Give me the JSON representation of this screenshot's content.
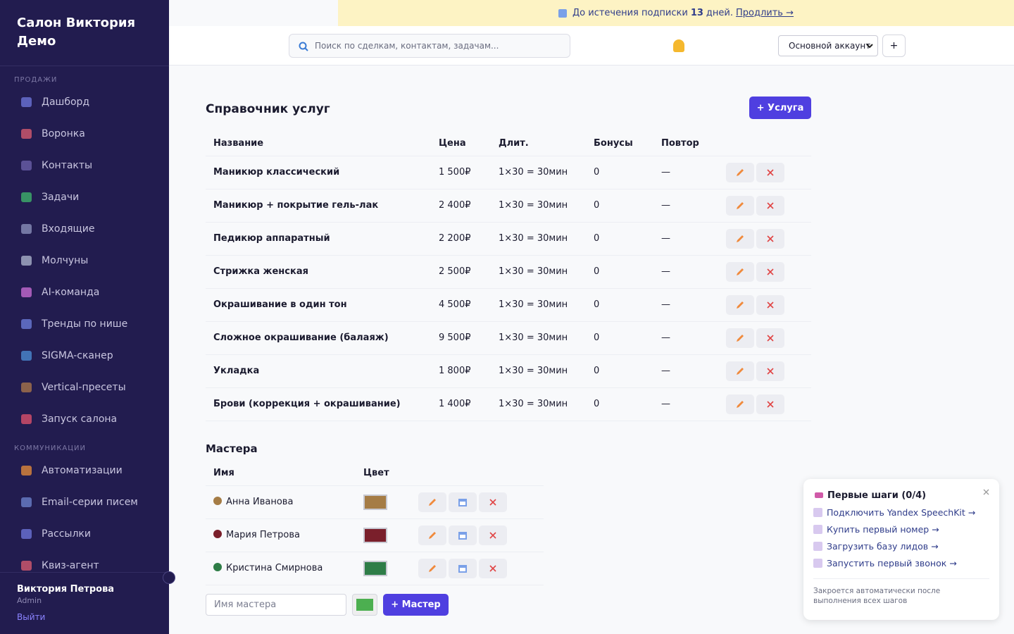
{
  "sidebar": {
    "brand": "Салон Виктория Демо",
    "sections": [
      {
        "label": "ПРОДАЖИ",
        "items": [
          "Дашборд",
          "Воронка",
          "Контакты",
          "Задачи",
          "Входящие",
          "Молчуны",
          "AI-команда",
          "Тренды по нише",
          "SIGMA-сканер",
          "Vertical-пресеты",
          "Запуск салона"
        ]
      },
      {
        "label": "КОММУНИКАЦИИ",
        "items": [
          "Автоматизации",
          "Email-серии писем",
          "Рассылки",
          "Квиз-агент"
        ]
      }
    ],
    "user": {
      "name": "Виктория Петрова",
      "role": "Admin",
      "logout": "Выйти"
    }
  },
  "banner": {
    "text_before": "До истечения подписки",
    "days": "13",
    "text_after": "дней.",
    "link": "Продлить →"
  },
  "topbar": {
    "search_placeholder": "Поиск по сделкам, контактам, задачам...",
    "account": "Основной аккаунт",
    "add": "+"
  },
  "services": {
    "title": "Справочник услуг",
    "add_button": "+ Услуга",
    "columns": [
      "Название",
      "Цена",
      "Длит.",
      "Бонусы",
      "Повтор"
    ],
    "rows": [
      [
        "Маникюр классический",
        "1 500₽",
        "1×30 = 30мин",
        "0",
        "—"
      ],
      [
        "Маникюр + покрытие гель-лак",
        "2 400₽",
        "1×30 = 30мин",
        "0",
        "—"
      ],
      [
        "Педикюр аппаратный",
        "2 200₽",
        "1×30 = 30мин",
        "0",
        "—"
      ],
      [
        "Стрижка женская",
        "2 500₽",
        "1×30 = 30мин",
        "0",
        "—"
      ],
      [
        "Окрашивание в один тон",
        "4 500₽",
        "1×30 = 30мин",
        "0",
        "—"
      ],
      [
        "Сложное окрашивание (балаяж)",
        "9 500₽",
        "1×30 = 30мин",
        "0",
        "—"
      ],
      [
        "Укладка",
        "1 800₽",
        "1×30 = 30мин",
        "0",
        "—"
      ],
      [
        "Брови (коррекция + окрашивание)",
        "1 400₽",
        "1×30 = 30мин",
        "0",
        "—"
      ]
    ]
  },
  "masters": {
    "title": "Мастера",
    "columns": [
      "Имя",
      "Цвет"
    ],
    "rows": [
      {
        "name": "Анна Иванова",
        "color": "#a57c45"
      },
      {
        "name": "Мария Петрова",
        "color": "#7a1f2b"
      },
      {
        "name": "Кристина Смирнова",
        "color": "#2e7d47"
      }
    ],
    "name_placeholder": "Имя мастера",
    "new_color": "#4caf50",
    "add_button": "+ Мастер"
  },
  "onboarding": {
    "title": "Первые шаги (0/4)",
    "items": [
      "Подключить Yandex SpeechKit →",
      "Купить первый номер →",
      "Загрузить базу лидов →",
      "Запустить первый звонок →"
    ],
    "note": "Закроется автоматически после выполнения всех шагов"
  }
}
